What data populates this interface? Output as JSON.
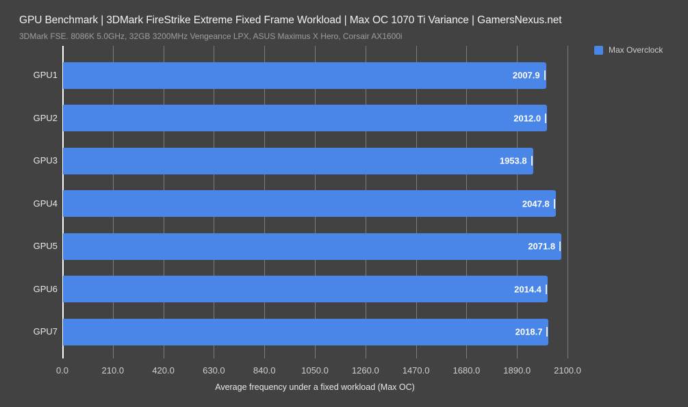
{
  "header": {
    "title": "GPU Benchmark | 3DMark FireStrike Extreme Fixed Frame Workload | Max OC 1070 Ti Variance | GamersNexus.net",
    "subtitle": "3DMark FSE. 8086K 5.0GHz, 32GB 3200MHz Vengeance LPX, ASUS Maximus X Hero, Corsair AX1600i"
  },
  "legend": {
    "position": "top-right",
    "items": [
      {
        "label": "Max Overclock",
        "color": "#4a86e8"
      }
    ]
  },
  "colors": {
    "background": "#424242",
    "bar": "#4a86e8",
    "gridline": "#7d7d7d",
    "baseline": "#ffffff",
    "title_text": "#f1f1f1",
    "subtitle_text": "#9e9e9e",
    "label_text": "#e8e8e8",
    "tick_text": "#cfcfcf",
    "value_text": "#ffffff",
    "whisker": "#e8e8e8"
  },
  "chart_data": {
    "type": "bar",
    "orientation": "horizontal",
    "title": "GPU Benchmark | 3DMark FireStrike Extreme Fixed Frame Workload | Max OC 1070 Ti Variance | GamersNexus.net",
    "subtitle": "3DMark FSE. 8086K 5.0GHz, 32GB 3200MHz Vengeance LPX, ASUS Maximus X Hero, Corsair AX1600i",
    "categories": [
      "GPU1",
      "GPU2",
      "GPU3",
      "GPU4",
      "GPU5",
      "GPU6",
      "GPU7"
    ],
    "series": [
      {
        "name": "Max Overclock",
        "values": [
          2007.9,
          2012.0,
          1953.8,
          2047.8,
          2071.8,
          2014.4,
          2018.7
        ]
      }
    ],
    "value_decimals": 1,
    "error_bars": true,
    "xlabel": "Average frequency under a fixed workload (Max OC)",
    "ylabel": "",
    "xlim": [
      0,
      2100
    ],
    "x_ticks": [
      0,
      210,
      420,
      630,
      840,
      1050,
      1260,
      1470,
      1680,
      1890,
      2100
    ],
    "x_tick_labels": [
      "0.0",
      "210.0",
      "420.0",
      "630.0",
      "840.0",
      "1050.0",
      "1260.0",
      "1470.0",
      "1680.0",
      "1890.0",
      "2100.0"
    ],
    "grid": true,
    "legend_position": "top-right"
  }
}
